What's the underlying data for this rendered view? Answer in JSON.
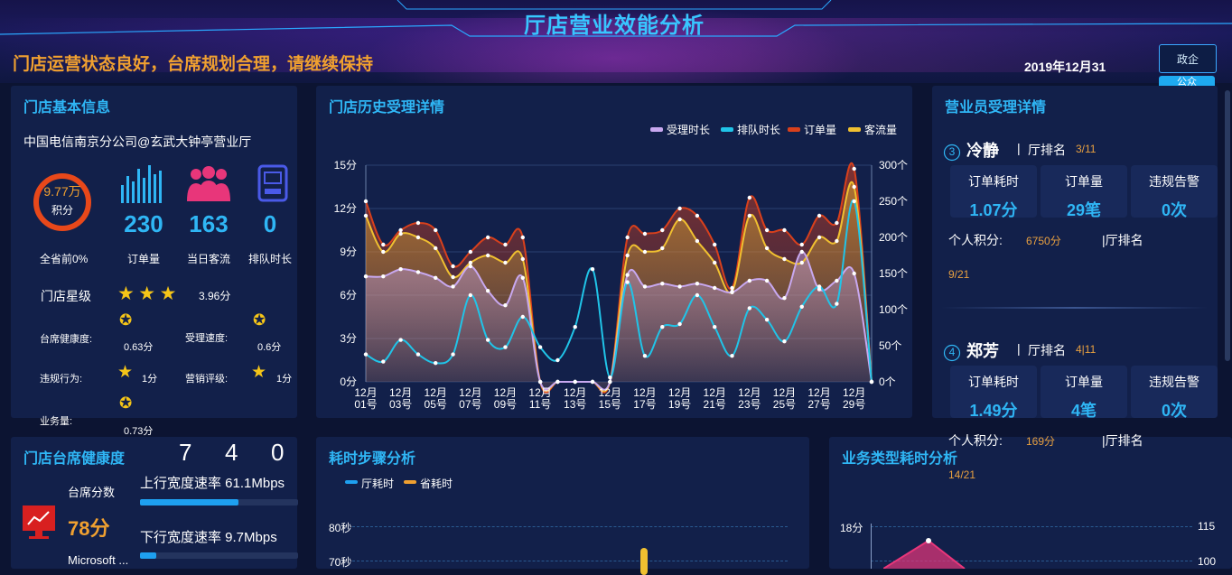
{
  "header": {
    "title": "厅店营业效能分析",
    "status_message": "门店运营状态良好，台席规划合理，请继续保持",
    "date": "2019年12月31日",
    "gov_button": "政企",
    "pub_button": "公众"
  },
  "store_info": {
    "title": "门店基本信息",
    "store_name": "中国电信南京分公司@玄武大钟亭营业厅",
    "score": "9.77万",
    "score_label": "积分",
    "rank_text": "全省前0%",
    "orders_value": "230",
    "orders_label": "订单量",
    "visitors_value": "163",
    "visitors_label": "当日客流",
    "queue_value": "0",
    "queue_label": "排队时长",
    "stars_label": "门店星级",
    "stars_value": 3,
    "stars_score": "3.96分",
    "metrics": {
      "desk_health_label": "台席健康度:",
      "desk_health_value": "0.63分",
      "speed_label": "受理速度:",
      "speed_value": "0.6分",
      "violation_label": "违规行为:",
      "violation_value": "1分",
      "marketing_label": "营销评级:",
      "marketing_value": "1分",
      "business_label": "业务量:",
      "business_value": "0.73分"
    },
    "colors": {
      "accent": "#2fb6f5",
      "ring": "#e8481a",
      "visitor_icon": "#e8367a"
    }
  },
  "history": {
    "title": "门店历史受理详情",
    "legend": [
      "受理时长",
      "排队时长",
      "订单量",
      "客流量"
    ]
  },
  "chart_data": {
    "type": "line",
    "x": [
      "12月01号",
      "12月02号",
      "12月03号",
      "12月04号",
      "12月05号",
      "12月06号",
      "12月07号",
      "12月08号",
      "12月09号",
      "12月10号",
      "12月11号",
      "12月12号",
      "12月13号",
      "12月14号",
      "12月15号",
      "12月16号",
      "12月17号",
      "12月18号",
      "12月19号",
      "12月20号",
      "12月21号",
      "12月22号",
      "12月23号",
      "12月24号",
      "12月25号",
      "12月26号",
      "12月27号",
      "12月28号",
      "12月29号",
      "12月30号"
    ],
    "x_tick_labels": [
      "12月\n01号",
      "12月\n03号",
      "12月\n05号",
      "12月\n07号",
      "12月\n09号",
      "12月\n11号",
      "12月\n13号",
      "12月\n15号",
      "12月\n17号",
      "12月\n19号",
      "12月\n21号",
      "12月\n23号",
      "12月\n25号",
      "12月\n27号",
      "12月\n29号"
    ],
    "y_left": {
      "ticks": [
        "0分",
        "3分",
        "6分",
        "9分",
        "12分",
        "15分"
      ],
      "range": [
        0,
        15
      ]
    },
    "y_right": {
      "ticks": [
        "0个",
        "50个",
        "100个",
        "150个",
        "200个",
        "250个",
        "300个"
      ],
      "range": [
        0,
        300
      ]
    },
    "series": [
      {
        "name": "受理时长",
        "axis": "left",
        "color": "#c8a8f0",
        "values": [
          7.3,
          7.3,
          7.8,
          7.6,
          7.2,
          6.6,
          8.0,
          6.3,
          5.3,
          7.2,
          0,
          0,
          0,
          0,
          0,
          7.4,
          6.6,
          6.8,
          6.6,
          6.8,
          6.5,
          6.2,
          7.0,
          7.0,
          5.8,
          9.0,
          6.4,
          7.0,
          7.5,
          0
        ]
      },
      {
        "name": "排队时长",
        "axis": "left",
        "color": "#20c4e8",
        "values": [
          1.9,
          1.4,
          2.9,
          1.9,
          1.3,
          1.9,
          6.0,
          2.9,
          2.4,
          4.5,
          2.4,
          1.5,
          3.8,
          7.8,
          0.3,
          6.9,
          1.8,
          3.8,
          4.0,
          6.0,
          3.8,
          1.8,
          5.1,
          4.3,
          2.8,
          5.2,
          6.6,
          5.4,
          12.5,
          0
        ]
      },
      {
        "name": "订单量",
        "axis": "right",
        "color": "#d8401c",
        "values": [
          250,
          190,
          210,
          220,
          210,
          160,
          180,
          200,
          190,
          200,
          0,
          0,
          0,
          0,
          0,
          200,
          205,
          210,
          240,
          230,
          190,
          130,
          255,
          210,
          210,
          190,
          230,
          220,
          295,
          0
        ]
      },
      {
        "name": "客流量",
        "axis": "right",
        "color": "#f0c030",
        "values": [
          230,
          180,
          205,
          200,
          185,
          145,
          165,
          175,
          165,
          170,
          0,
          0,
          0,
          0,
          0,
          175,
          180,
          185,
          225,
          195,
          165,
          125,
          230,
          185,
          170,
          165,
          200,
          195,
          270,
          0
        ]
      }
    ],
    "grid": true,
    "legend_position": "top-right"
  },
  "staff": {
    "title": "营业员受理详情",
    "employees": [
      {
        "index": "3",
        "name": "冷静",
        "rank_label": "厅排名",
        "rank": "3/11",
        "orders_time_label": "订单耗时",
        "orders_time": "1.07分",
        "orders_label": "订单量",
        "orders": "29笔",
        "violations_label": "违规告警",
        "violations": "0次",
        "score_label": "个人积分:",
        "score": "6750分",
        "score_rank_label": "|厅排名",
        "score_rank": "9/21"
      },
      {
        "index": "4",
        "name": "郑芳",
        "rank_label": "厅排名",
        "rank": "4|11",
        "orders_time_label": "订单耗时",
        "orders_time": "1.49分",
        "orders_label": "订单量",
        "orders": "4笔",
        "violations_label": "违规告警",
        "violations": "0次",
        "score_label": "个人积分:",
        "score": "169分",
        "score_rank_label": "|厅排名",
        "score_rank": "14/21"
      }
    ]
  },
  "health": {
    "title": "门店台席健康度",
    "digits": [
      "7",
      "4",
      "0"
    ],
    "desk_score_label": "台席分数",
    "desk_score": "78分",
    "up_speed": "上行宽度速率 61.1Mbps",
    "up_fraction": 0.62,
    "down_speed": "下行宽度速率 9.7Mbps",
    "down_fraction": 0.1,
    "device_label": "Microsoft ..."
  },
  "steps": {
    "title": "耗时步骤分析",
    "legend": [
      "厅耗时",
      "省耗时"
    ],
    "y_ticks": [
      "80秒",
      "70秒"
    ],
    "colors": {
      "hall": "#1ea0f0",
      "province": "#f0a030"
    }
  },
  "biz": {
    "title": "业务类型耗时分析",
    "y_left_top": "18分",
    "y_right_top": "115",
    "y_right_second": "100",
    "colors": {
      "area": "#e8367a"
    }
  }
}
